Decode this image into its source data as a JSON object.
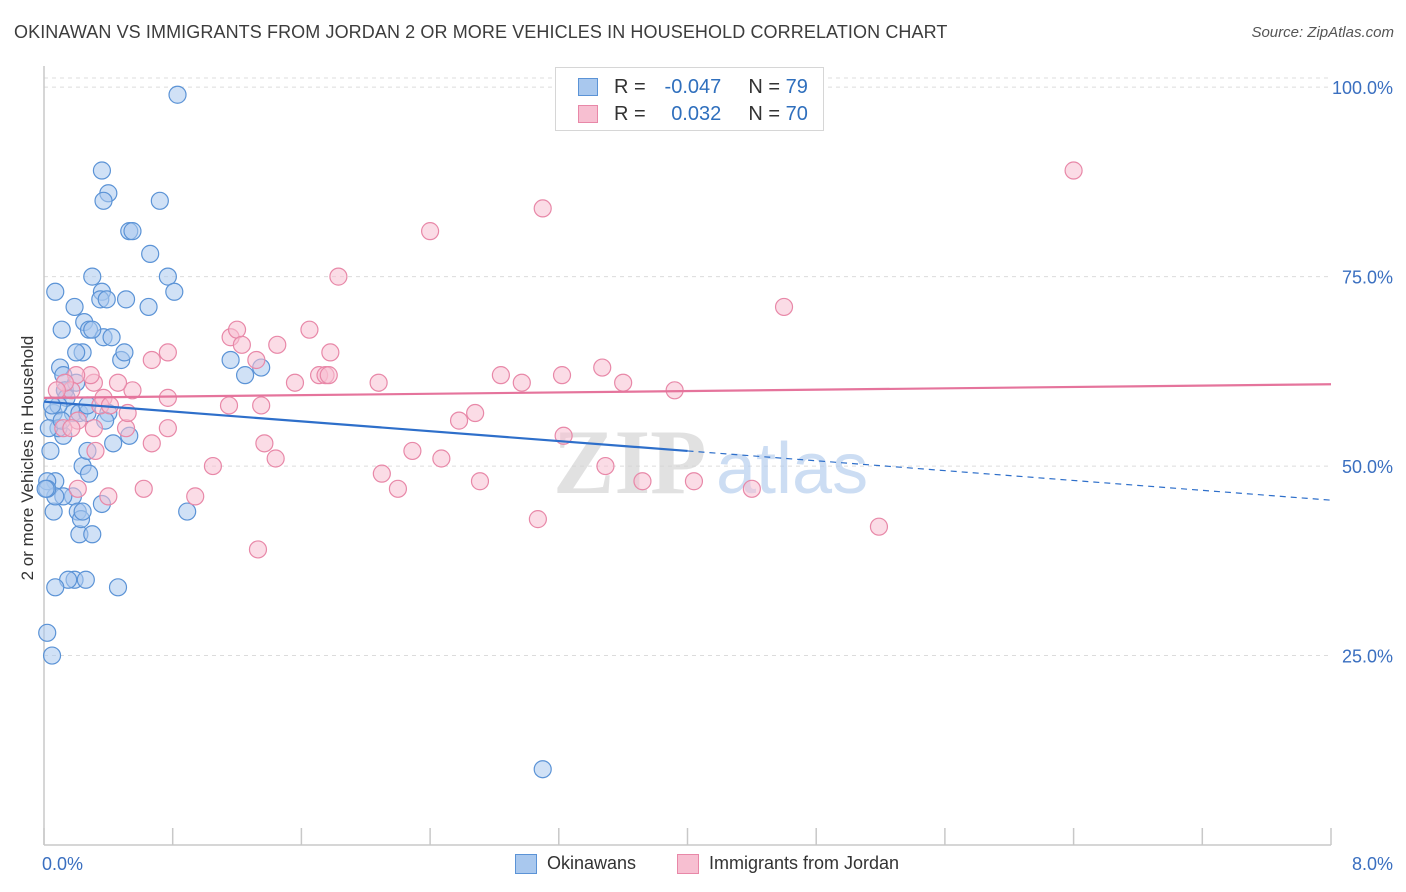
{
  "title": "OKINAWAN VS IMMIGRANTS FROM JORDAN 2 OR MORE VEHICLES IN HOUSEHOLD CORRELATION CHART",
  "source": "Source: ZipAtlas.com",
  "watermark": {
    "zip": "ZIP",
    "atlas": "atlas"
  },
  "legend": {
    "rows": [
      {
        "r_label": "R =",
        "r_value": "-0.047",
        "n_label": "N =",
        "n_value": "79"
      },
      {
        "r_label": "R =",
        "r_value": "0.032",
        "n_label": "N =",
        "n_value": "70"
      }
    ]
  },
  "bottom_legend": [
    "Okinawans",
    "Immigrants from Jordan"
  ],
  "colors": {
    "blue_fill": "#a9c8ee",
    "blue_stroke": "#5b93d6",
    "blue_line": "#2e6fca",
    "pink_fill": "#f7bfd1",
    "pink_stroke": "#e888a8",
    "pink_line": "#e5749c",
    "tick_label": "#3a6fc0",
    "grid": "#dcdcdc"
  },
  "chart_data": {
    "type": "scatter",
    "title": "OKINAWAN VS IMMIGRANTS FROM JORDAN 2 OR MORE VEHICLES IN HOUSEHOLD CORRELATION CHART",
    "xlabel": "",
    "ylabel": "2 or more Vehicles in Household",
    "xlim": [
      0,
      8
    ],
    "ylim": [
      0,
      102
    ],
    "x_tick_labels": [
      "0.0%",
      "8.0%"
    ],
    "x_tick_values": [
      0,
      8
    ],
    "x_minor_ticks": [
      0.8,
      1.6,
      2.4,
      3.2,
      4.0,
      4.8,
      5.6,
      6.4,
      7.2
    ],
    "y_ticks": [
      25,
      50,
      75,
      100
    ],
    "y_tick_labels": [
      "25.0%",
      "50.0%",
      "75.0%",
      "100.0%"
    ],
    "grid": true,
    "legend_position": "top-center",
    "series": [
      {
        "name": "Okinawans",
        "x": [
          0.83,
          0.36,
          0.4,
          0.37,
          0.72,
          0.53,
          0.55,
          0.66,
          0.3,
          0.77,
          0.36,
          0.51,
          0.35,
          0.07,
          0.39,
          0.19,
          0.25,
          0.11,
          0.28,
          0.37,
          0.24,
          0.2,
          0.1,
          0.12,
          0.48,
          0.81,
          0.65,
          0.3,
          0.42,
          0.5,
          0.13,
          0.13,
          0.14,
          0.18,
          0.4,
          0.22,
          0.06,
          0.09,
          0.38,
          0.43,
          0.27,
          0.27,
          0.12,
          0.09,
          0.03,
          0.05,
          0.04,
          0.07,
          0.06,
          0.24,
          0.02,
          0.18,
          0.28,
          0.12,
          0.21,
          0.07,
          0.22,
          0.3,
          0.02,
          0.19,
          0.01,
          0.23,
          0.15,
          0.02,
          0.05,
          0.36,
          0.24,
          0.07,
          0.26,
          0.46,
          0.11,
          0.27,
          0.53,
          0.89,
          1.16,
          1.25,
          1.35,
          0.2,
          3.1
        ],
        "y": [
          99,
          89,
          86,
          85,
          85,
          81,
          81,
          78,
          75,
          75,
          73,
          72,
          72,
          73,
          72,
          71,
          69,
          68,
          68,
          67,
          65,
          65,
          63,
          62,
          64,
          73,
          71,
          68,
          67,
          65,
          60,
          60,
          59,
          57,
          57,
          57,
          57,
          58,
          56,
          53,
          57,
          58,
          54,
          55,
          55,
          58,
          52,
          48,
          44,
          50,
          48,
          46,
          49,
          46,
          44,
          46,
          41,
          41,
          47,
          35,
          47,
          43,
          35,
          28,
          25,
          45,
          44,
          34,
          35,
          34,
          56,
          52,
          54,
          44,
          64,
          62,
          63,
          61,
          10
        ]
      },
      {
        "name": "Immigrants from Jordan",
        "x": [
          6.4,
          3.1,
          2.4,
          1.83,
          4.6,
          1.65,
          1.16,
          1.2,
          1.23,
          1.45,
          1.71,
          1.56,
          2.84,
          1.78,
          2.97,
          3.22,
          1.32,
          2.08,
          2.68,
          3.6,
          3.92,
          3.47,
          2.58,
          0.77,
          0.67,
          0.55,
          0.77,
          0.51,
          0.46,
          0.37,
          0.35,
          0.31,
          0.29,
          0.2,
          0.17,
          0.13,
          0.08,
          0.21,
          0.12,
          0.31,
          0.32,
          0.41,
          0.52,
          0.67,
          0.77,
          1.05,
          1.15,
          1.35,
          1.37,
          1.44,
          1.75,
          1.77,
          2.1,
          2.2,
          2.29,
          2.47,
          3.23,
          3.49,
          3.72,
          4.04,
          3.07,
          4.4,
          2.71,
          1.33,
          0.94,
          0.62,
          0.4,
          0.21,
          0.17,
          5.19
        ],
        "y": [
          89,
          84,
          81,
          75,
          71,
          68,
          67,
          68,
          66,
          66,
          62,
          61,
          62,
          65,
          61,
          62,
          64,
          61,
          57,
          61,
          60,
          63,
          56,
          65,
          64,
          60,
          59,
          55,
          61,
          59,
          58,
          61,
          62,
          62,
          60,
          61,
          60,
          56,
          55,
          55,
          52,
          58,
          57,
          53,
          55,
          50,
          58,
          58,
          53,
          51,
          62,
          62,
          49,
          47,
          52,
          51,
          54,
          50,
          48,
          48,
          43,
          47,
          48,
          39,
          46,
          47,
          46,
          47,
          55,
          42
        ]
      }
    ],
    "trend_lines": [
      {
        "series": "Okinawans",
        "x": [
          0,
          8
        ],
        "y": [
          58.5,
          45.5
        ],
        "solid_until_x": 4.0
      },
      {
        "series": "Immigrants from Jordan",
        "x": [
          0,
          8
        ],
        "y": [
          59.0,
          60.8
        ]
      }
    ]
  }
}
